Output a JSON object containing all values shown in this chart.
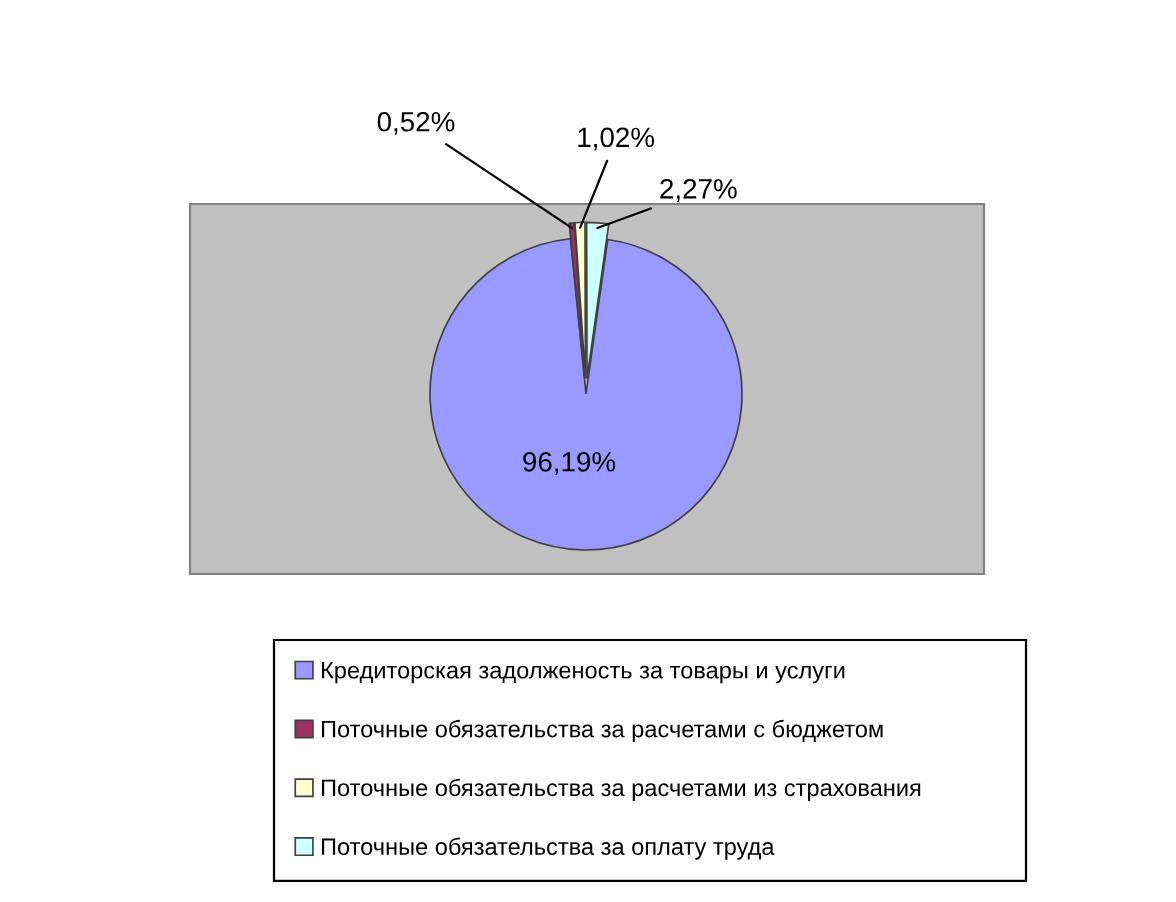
{
  "chart_data": {
    "type": "pie",
    "categories": [
      "Кредиторская задолженость за товары и услуги",
      "Поточные обязательства за расчетами с бюджетом",
      "Поточные обязательства за расчетами из страхования",
      "Поточные обязательства за оплату труда"
    ],
    "values": [
      96.19,
      0.52,
      1.02,
      2.27
    ],
    "colors": [
      "#9999ff",
      "#993366",
      "#ffffcc",
      "#ccffff"
    ],
    "value_labels": [
      "96,19%",
      "0,52%",
      "1,02%",
      "2,27%"
    ],
    "legend": "bottom"
  }
}
